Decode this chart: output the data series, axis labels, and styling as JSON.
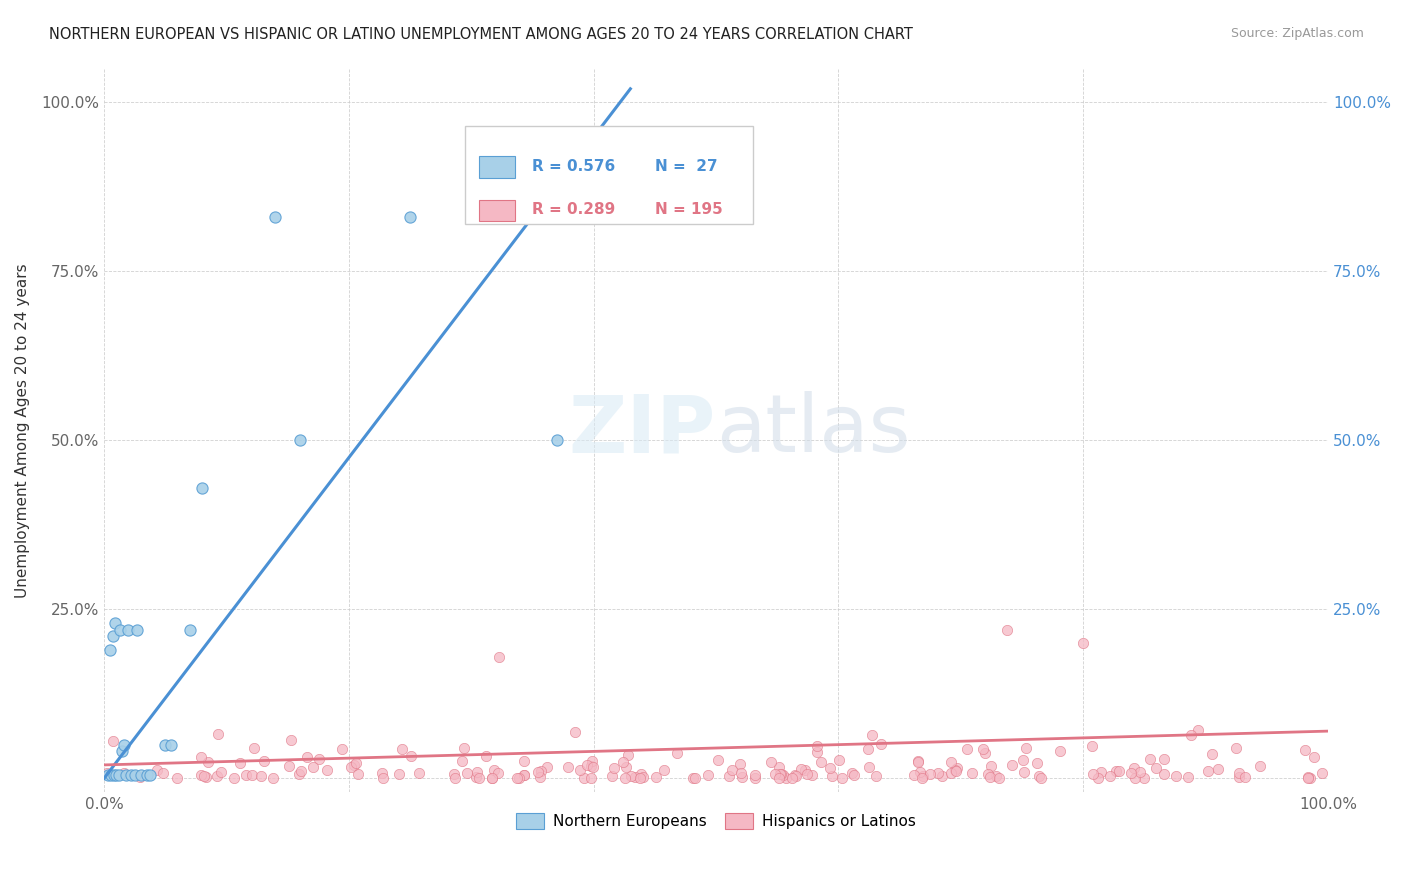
{
  "title": "NORTHERN EUROPEAN VS HISPANIC OR LATINO UNEMPLOYMENT AMONG AGES 20 TO 24 YEARS CORRELATION CHART",
  "source": "Source: ZipAtlas.com",
  "ylabel": "Unemployment Among Ages 20 to 24 years",
  "xlim": [
    0,
    1.0
  ],
  "ylim": [
    -0.02,
    1.05
  ],
  "xticks": [
    0.0,
    0.2,
    0.4,
    0.6,
    0.8,
    1.0
  ],
  "yticks": [
    0.0,
    0.25,
    0.5,
    0.75,
    1.0
  ],
  "blue_R": 0.576,
  "blue_N": 27,
  "pink_R": 0.289,
  "pink_N": 195,
  "blue_color": "#a8d0e8",
  "pink_color": "#f5b8c4",
  "blue_edge_color": "#5a9fd4",
  "pink_edge_color": "#e07585",
  "blue_line_color": "#4a90d4",
  "pink_line_color": "#e07585",
  "legend_label_blue": "Northern Europeans",
  "legend_label_pink": "Hispanics or Latinos",
  "blue_scatter_x": [
    0.003,
    0.005,
    0.006,
    0.007,
    0.008,
    0.009,
    0.01,
    0.012,
    0.013,
    0.015,
    0.016,
    0.018,
    0.02,
    0.022,
    0.025,
    0.027,
    0.03,
    0.035,
    0.038,
    0.05,
    0.055,
    0.07,
    0.08,
    0.14,
    0.16,
    0.25,
    0.37
  ],
  "blue_scatter_y": [
    0.005,
    0.19,
    0.005,
    0.21,
    0.005,
    0.23,
    0.005,
    0.005,
    0.22,
    0.04,
    0.05,
    0.005,
    0.22,
    0.005,
    0.005,
    0.22,
    0.005,
    0.005,
    0.005,
    0.05,
    0.05,
    0.22,
    0.43,
    0.83,
    0.5,
    0.83,
    0.5
  ],
  "blue_line_x0": 0.0,
  "blue_line_y0": 0.0,
  "blue_line_x1": 0.43,
  "blue_line_y1": 1.02,
  "pink_line_x0": 0.0,
  "pink_line_y0": 0.02,
  "pink_line_x1": 1.0,
  "pink_line_y1": 0.07
}
